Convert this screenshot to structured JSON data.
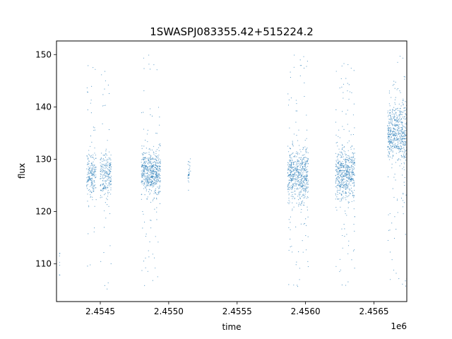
{
  "chart_data": {
    "type": "scatter",
    "title": "1SWASPJ083355.42+515224.2",
    "xlabel": "time",
    "ylabel": "flux",
    "x_offset_label": "1e6",
    "xlim": [
      2454180,
      2456740
    ],
    "ylim": [
      102.8,
      152.6
    ],
    "x_ticks": [
      2454500,
      2455000,
      2455500,
      2456000,
      2456500
    ],
    "x_tick_labels": [
      "2.4545",
      "2.4550",
      "2.4555",
      "2.4560",
      "2.4565"
    ],
    "y_ticks": [
      110,
      120,
      130,
      140,
      150
    ],
    "y_tick_labels": [
      "110",
      "120",
      "130",
      "140",
      "150"
    ],
    "grid": false,
    "legend": "none",
    "marker_color": "#1f77b4",
    "series": [
      {
        "clusters": [
          {
            "x_range": [
              2454200,
              2454205
            ],
            "y_center": 109.5,
            "y_spread": 1.5,
            "y_min": 107,
            "y_max": 112,
            "density": 0.2
          },
          {
            "x_range": [
              2454400,
              2454470
            ],
            "y_center": 127.0,
            "y_spread": 2.0,
            "y_min": 108,
            "y_max": 149,
            "density": 1.0
          },
          {
            "x_range": [
              2454500,
              2454580
            ],
            "y_center": 127.0,
            "y_spread": 2.5,
            "y_min": 105,
            "y_max": 150,
            "density": 1.0
          },
          {
            "x_range": [
              2454800,
              2454940
            ],
            "y_center": 127.5,
            "y_spread": 2.0,
            "y_min": 105,
            "y_max": 150,
            "density": 1.4
          },
          {
            "x_range": [
              2455140,
              2455160
            ],
            "y_center": 127.5,
            "y_spread": 1.5,
            "y_min": 124,
            "y_max": 130.5,
            "density": 0.5
          },
          {
            "x_range": [
              2455870,
              2456020
            ],
            "y_center": 127.0,
            "y_spread": 2.5,
            "y_min": 105,
            "y_max": 150,
            "density": 1.4
          },
          {
            "x_range": [
              2456220,
              2456360
            ],
            "y_center": 127.0,
            "y_spread": 2.5,
            "y_min": 105,
            "y_max": 150,
            "density": 1.4
          },
          {
            "x_range": [
              2456600,
              2456740
            ],
            "y_center": 135.0,
            "y_spread": 2.8,
            "y_min": 105,
            "y_max": 150,
            "density": 1.4
          }
        ]
      }
    ]
  }
}
